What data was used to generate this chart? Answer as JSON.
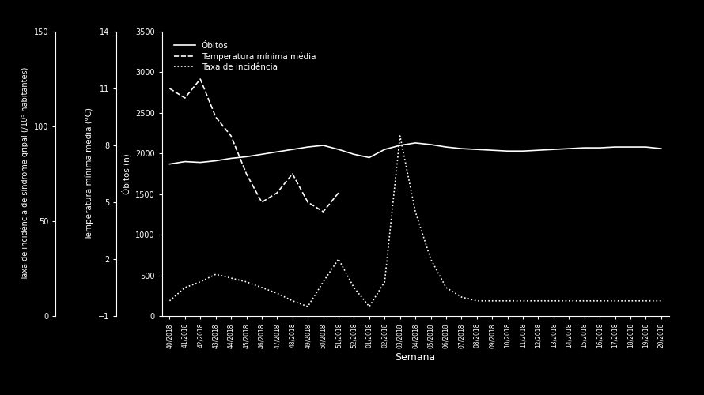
{
  "background_color": "#000000",
  "text_color": "#ffffff",
  "weeks": [
    "40/2018",
    "41/2018",
    "42/2018",
    "43/2018",
    "44/2018",
    "45/2018",
    "46/2018",
    "47/2018",
    "48/2018",
    "49/2018",
    "50/2018",
    "51/2018",
    "52/2018",
    "01/2018",
    "02/2018",
    "03/2018",
    "04/2018",
    "05/2018",
    "06/2018",
    "07/2018",
    "08/2018",
    "09/2018",
    "10/2018",
    "11/2018",
    "12/2018",
    "13/2018",
    "14/2018",
    "15/2018",
    "16/2018",
    "17/2018",
    "18/2018",
    "19/2018",
    "20/2018"
  ],
  "obitos": [
    1870,
    1900,
    1890,
    1910,
    1940,
    1960,
    1990,
    2020,
    2050,
    2080,
    2100,
    2050,
    1990,
    1950,
    2050,
    2100,
    2130,
    2110,
    2080,
    2060,
    2050,
    2040,
    2030,
    2030,
    2040,
    2050,
    2060,
    2070,
    2070,
    2080,
    2080,
    2080,
    2060
  ],
  "temp_x_indices": [
    0,
    1,
    2,
    3,
    4,
    5,
    6,
    7,
    8,
    9,
    10,
    11
  ],
  "temp_y": [
    11.0,
    10.5,
    11.5,
    9.5,
    8.5,
    6.5,
    5.0,
    5.5,
    6.5,
    5.0,
    4.5,
    5.5
  ],
  "incidencia_x_indices": [
    0,
    1,
    2,
    3,
    4,
    5,
    6,
    7,
    8,
    9,
    10,
    11,
    12,
    13,
    14,
    15,
    16,
    17,
    18,
    19,
    20,
    21,
    22,
    23,
    24,
    25,
    26,
    27,
    28,
    29,
    30,
    31,
    32
  ],
  "incidencia_y": [
    8,
    15,
    18,
    22,
    20,
    18,
    15,
    12,
    8,
    5,
    18,
    30,
    15,
    5,
    18,
    95,
    55,
    30,
    15,
    10,
    8,
    8,
    8,
    8,
    8,
    8,
    8,
    8,
    8,
    8,
    8,
    8,
    8
  ],
  "ylabel1": "Taxa de incidência de síndrome gripal (/10⁵ habitantes)",
  "ylabel2": "Temperatura mínima média (ºC)",
  "ylabel3": "Óbitos (n)",
  "xlabel": "Semana",
  "ylim1": [
    0,
    150
  ],
  "yticks1": [
    0,
    50,
    100,
    150
  ],
  "ylim2": [
    -1,
    14
  ],
  "yticks2": [
    -1,
    2,
    5,
    8,
    11,
    14
  ],
  "ylim3": [
    0,
    3500
  ],
  "yticks3": [
    0,
    500,
    1000,
    1500,
    2000,
    2500,
    3000,
    3500
  ],
  "legend_labels": [
    "Óbitos",
    "Temperatura mínima média",
    "Taxa de incidência"
  ],
  "figsize": [
    8.9,
    5.0
  ],
  "dpi": 100
}
